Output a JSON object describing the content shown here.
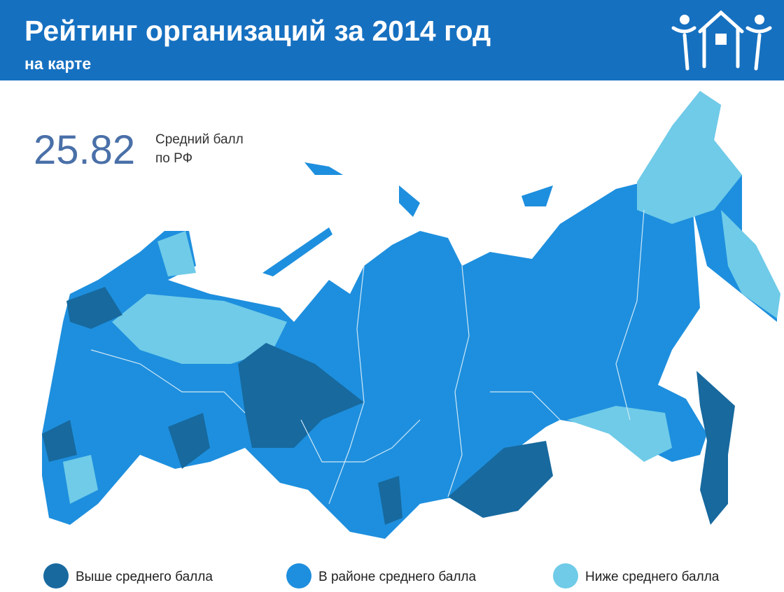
{
  "header": {
    "title": "Рейтинг организаций за 2014 год",
    "subtitle": "на карте"
  },
  "summary": {
    "value": 25.82,
    "label_line1": "Средний балл",
    "label_line2": "по РФ"
  },
  "legend": [
    {
      "label": "Выше среднего балла",
      "color": "#17699e"
    },
    {
      "label": "В районе среднего балла",
      "color": "#1e8fde"
    },
    {
      "label": "Ниже среднего балла",
      "color": "#6fcbe8"
    }
  ]
}
